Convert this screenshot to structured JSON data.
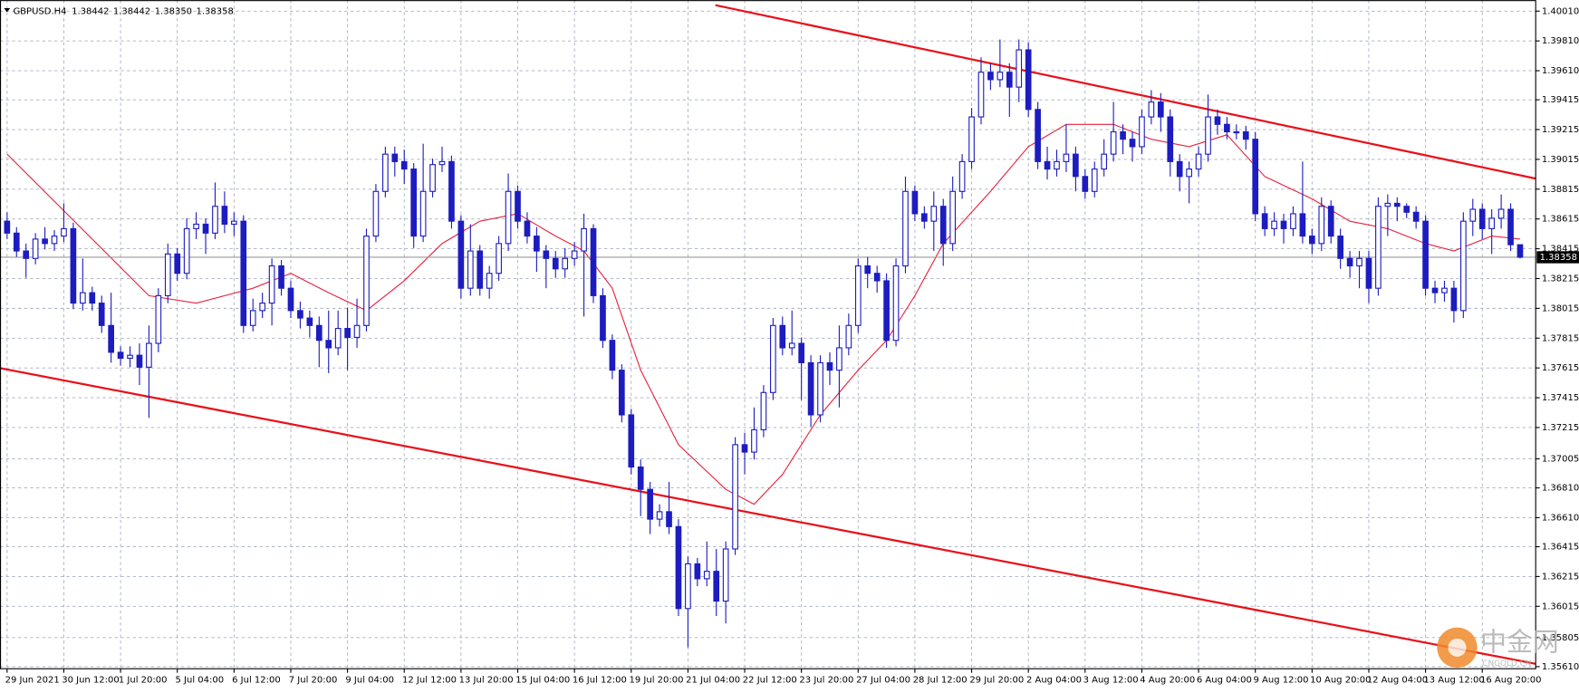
{
  "chart_data": {
    "type": "candlestick",
    "title": "GBPUSD.H4",
    "ohlc_labels": [
      "1.38442",
      "1.38442",
      "1.38350",
      "1.38358"
    ],
    "color": "#1c1cc0",
    "grid": true,
    "xlim": [
      -0.75,
      161.65
    ],
    "ylim": [
      1.35596,
      1.40084
    ],
    "yticks": [
      {
        "value": 1.4001,
        "label": "1.40010"
      },
      {
        "value": 1.3981,
        "label": "1.39810"
      },
      {
        "value": 1.3961,
        "label": "1.39610"
      },
      {
        "value": 1.39415,
        "label": "1.39415"
      },
      {
        "value": 1.39215,
        "label": "1.39215"
      },
      {
        "value": 1.39015,
        "label": "1.39015"
      },
      {
        "value": 1.38815,
        "label": "1.38815"
      },
      {
        "value": 1.38615,
        "label": "1.38615"
      },
      {
        "value": 1.38415,
        "label": "1.38415"
      },
      {
        "value": 1.38215,
        "label": "1.38215"
      },
      {
        "value": 1.38015,
        "label": "1.38015"
      },
      {
        "value": 1.37815,
        "label": "1.37815"
      },
      {
        "value": 1.37615,
        "label": "1.37615"
      },
      {
        "value": 1.37415,
        "label": "1.37415"
      },
      {
        "value": 1.37215,
        "label": "1.37215"
      },
      {
        "value": 1.37005,
        "label": "1.37005"
      },
      {
        "value": 1.3681,
        "label": "1.36810"
      },
      {
        "value": 1.3661,
        "label": "1.36610"
      },
      {
        "value": 1.36415,
        "label": "1.36415"
      },
      {
        "value": 1.36215,
        "label": "1.36215"
      },
      {
        "value": 1.36015,
        "label": "1.36015"
      },
      {
        "value": 1.35805,
        "label": "1.35805"
      },
      {
        "value": 1.3561,
        "label": "1.35610"
      }
    ],
    "xticks": [
      {
        "value": 0,
        "label": "29 Jun 2021"
      },
      {
        "value": 6,
        "label": "30 Jun 12:00"
      },
      {
        "value": 12,
        "label": "1 Jul 20:00"
      },
      {
        "value": 18,
        "label": "5 Jul 04:00"
      },
      {
        "value": 24,
        "label": "6 Jul 12:00"
      },
      {
        "value": 30,
        "label": "7 Jul 20:00"
      },
      {
        "value": 36,
        "label": "9 Jul 04:00"
      },
      {
        "value": 42,
        "label": "12 Jul 12:00"
      },
      {
        "value": 48,
        "label": "13 Jul 20:00"
      },
      {
        "value": 54,
        "label": "15 Jul 04:00"
      },
      {
        "value": 60,
        "label": "16 Jul 12:00"
      },
      {
        "value": 66,
        "label": "19 Jul 20:00"
      },
      {
        "value": 72,
        "label": "21 Jul 04:00"
      },
      {
        "value": 78,
        "label": "22 Jul 12:00"
      },
      {
        "value": 84,
        "label": "23 Jul 20:00"
      },
      {
        "value": 90,
        "label": "27 Jul 04:00"
      },
      {
        "value": 96,
        "label": "28 Jul 12:00"
      },
      {
        "value": 102,
        "label": "29 Jul 20:00"
      },
      {
        "value": 108,
        "label": "2 Aug 04:00"
      },
      {
        "value": 114,
        "label": "3 Aug 12:00"
      },
      {
        "value": 120,
        "label": "4 Aug 20:00"
      },
      {
        "value": 126,
        "label": "6 Aug 04:00"
      },
      {
        "value": 132,
        "label": "9 Aug 12:00"
      },
      {
        "value": 138,
        "label": "10 Aug 20:00"
      },
      {
        "value": 144,
        "label": "12 Aug 04:00"
      },
      {
        "value": 150,
        "label": "13 Aug 12:00"
      },
      {
        "value": 156,
        "label": "16 Aug 20:00"
      }
    ],
    "candles": [
      [
        1.386,
        1.3866,
        1.3848,
        1.3852
      ],
      [
        1.3852,
        1.3856,
        1.3836,
        1.384
      ],
      [
        1.384,
        1.3845,
        1.3822,
        1.3835
      ],
      [
        1.3835,
        1.3852,
        1.3831,
        1.3848
      ],
      [
        1.3848,
        1.3856,
        1.3841,
        1.3845
      ],
      [
        1.3845,
        1.3854,
        1.384,
        1.385
      ],
      [
        1.385,
        1.3872,
        1.3846,
        1.3855
      ],
      [
        1.3855,
        1.3859,
        1.3801,
        1.3805
      ],
      [
        1.3805,
        1.3835,
        1.38,
        1.3812
      ],
      [
        1.3812,
        1.3816,
        1.38,
        1.3805
      ],
      [
        1.3805,
        1.381,
        1.3785,
        1.379
      ],
      [
        1.379,
        1.3812,
        1.3765,
        1.3772
      ],
      [
        1.3772,
        1.3776,
        1.3763,
        1.3768
      ],
      [
        1.3768,
        1.3776,
        1.3762,
        1.377
      ],
      [
        1.377,
        1.3778,
        1.375,
        1.3762
      ],
      [
        1.3762,
        1.379,
        1.3728,
        1.3778
      ],
      [
        1.3778,
        1.3815,
        1.3772,
        1.381
      ],
      [
        1.381,
        1.3845,
        1.3805,
        1.3838
      ],
      [
        1.3838,
        1.3842,
        1.382,
        1.3825
      ],
      [
        1.3825,
        1.3862,
        1.3821,
        1.3855
      ],
      [
        1.3855,
        1.3866,
        1.3848,
        1.3858
      ],
      [
        1.3858,
        1.3862,
        1.3838,
        1.3852
      ],
      [
        1.3852,
        1.3886,
        1.3848,
        1.387
      ],
      [
        1.387,
        1.388,
        1.3852,
        1.3858
      ],
      [
        1.3858,
        1.3866,
        1.385,
        1.386
      ],
      [
        1.386,
        1.3864,
        1.3785,
        1.379
      ],
      [
        1.379,
        1.3808,
        1.3786,
        1.38
      ],
      [
        1.38,
        1.3812,
        1.3795,
        1.3805
      ],
      [
        1.3805,
        1.3835,
        1.379,
        1.383
      ],
      [
        1.383,
        1.3834,
        1.381,
        1.3815
      ],
      [
        1.3815,
        1.382,
        1.3795,
        1.38
      ],
      [
        1.38,
        1.3806,
        1.3788,
        1.3795
      ],
      [
        1.3795,
        1.38,
        1.3782,
        1.379
      ],
      [
        1.379,
        1.3796,
        1.3762,
        1.378
      ],
      [
        1.378,
        1.38,
        1.3758,
        1.3775
      ],
      [
        1.3775,
        1.38,
        1.377,
        1.3788
      ],
      [
        1.3788,
        1.3802,
        1.376,
        1.3782
      ],
      [
        1.3782,
        1.3808,
        1.3775,
        1.379
      ],
      [
        1.379,
        1.3855,
        1.3786,
        1.385
      ],
      [
        1.385,
        1.3885,
        1.3846,
        1.388
      ],
      [
        1.388,
        1.391,
        1.3876,
        1.3905
      ],
      [
        1.3905,
        1.391,
        1.389,
        1.39
      ],
      [
        1.39,
        1.3908,
        1.3885,
        1.3895
      ],
      [
        1.3895,
        1.3899,
        1.3842,
        1.385
      ],
      [
        1.385,
        1.3912,
        1.3846,
        1.388
      ],
      [
        1.388,
        1.3902,
        1.3876,
        1.3898
      ],
      [
        1.3898,
        1.391,
        1.3893,
        1.39
      ],
      [
        1.39,
        1.3904,
        1.3855,
        1.386
      ],
      [
        1.386,
        1.3864,
        1.3808,
        1.3815
      ],
      [
        1.3815,
        1.3858,
        1.381,
        1.384
      ],
      [
        1.384,
        1.3844,
        1.381,
        1.3815
      ],
      [
        1.3815,
        1.383,
        1.3808,
        1.3825
      ],
      [
        1.3825,
        1.385,
        1.382,
        1.3845
      ],
      [
        1.3845,
        1.3892,
        1.384,
        1.388
      ],
      [
        1.388,
        1.3884,
        1.3855,
        1.386
      ],
      [
        1.386,
        1.3866,
        1.3845,
        1.385
      ],
      [
        1.385,
        1.3856,
        1.3826,
        1.384
      ],
      [
        1.384,
        1.3844,
        1.3815,
        1.3835
      ],
      [
        1.3835,
        1.384,
        1.3822,
        1.3828
      ],
      [
        1.3828,
        1.3842,
        1.3822,
        1.3835
      ],
      [
        1.3835,
        1.3846,
        1.383,
        1.384
      ],
      [
        1.384,
        1.3865,
        1.3796,
        1.3855
      ],
      [
        1.3855,
        1.3858,
        1.3805,
        1.381
      ],
      [
        1.381,
        1.3815,
        1.3775,
        1.378
      ],
      [
        1.378,
        1.3784,
        1.3754,
        1.376
      ],
      [
        1.376,
        1.3764,
        1.3725,
        1.373
      ],
      [
        1.373,
        1.3734,
        1.369,
        1.3695
      ],
      [
        1.3695,
        1.37,
        1.3662,
        1.368
      ],
      [
        1.368,
        1.3685,
        1.365,
        1.366
      ],
      [
        1.366,
        1.367,
        1.3655,
        1.3665
      ],
      [
        1.3665,
        1.3685,
        1.365,
        1.3655
      ],
      [
        1.3655,
        1.366,
        1.3595,
        1.36
      ],
      [
        1.36,
        1.3635,
        1.3574,
        1.363
      ],
      [
        1.363,
        1.3634,
        1.3615,
        1.362
      ],
      [
        1.362,
        1.3645,
        1.3615,
        1.3625
      ],
      [
        1.3625,
        1.364,
        1.3595,
        1.3605
      ],
      [
        1.3605,
        1.3645,
        1.359,
        1.364
      ],
      [
        1.364,
        1.3715,
        1.3636,
        1.371
      ],
      [
        1.371,
        1.3718,
        1.369,
        1.3705
      ],
      [
        1.3705,
        1.3735,
        1.37,
        1.372
      ],
      [
        1.372,
        1.375,
        1.3715,
        1.3745
      ],
      [
        1.3745,
        1.3795,
        1.374,
        1.379
      ],
      [
        1.379,
        1.3796,
        1.377,
        1.3775
      ],
      [
        1.3775,
        1.38,
        1.377,
        1.3778
      ],
      [
        1.3778,
        1.3782,
        1.374,
        1.3765
      ],
      [
        1.3765,
        1.377,
        1.3722,
        1.373
      ],
      [
        1.373,
        1.377,
        1.3725,
        1.3765
      ],
      [
        1.3765,
        1.3772,
        1.375,
        1.376
      ],
      [
        1.376,
        1.379,
        1.3735,
        1.3775
      ],
      [
        1.3775,
        1.3798,
        1.377,
        1.379
      ],
      [
        1.379,
        1.3835,
        1.3785,
        1.383
      ],
      [
        1.383,
        1.3836,
        1.3815,
        1.3825
      ],
      [
        1.3825,
        1.383,
        1.3812,
        1.382
      ],
      [
        1.382,
        1.3825,
        1.3775,
        1.378
      ],
      [
        1.378,
        1.3835,
        1.3776,
        1.383
      ],
      [
        1.383,
        1.389,
        1.3825,
        1.388
      ],
      [
        1.388,
        1.3884,
        1.386,
        1.3865
      ],
      [
        1.3865,
        1.387,
        1.3855,
        1.386
      ],
      [
        1.386,
        1.388,
        1.384,
        1.387
      ],
      [
        1.387,
        1.3875,
        1.383,
        1.3845
      ],
      [
        1.3845,
        1.389,
        1.384,
        1.388
      ],
      [
        1.388,
        1.3905,
        1.3875,
        1.39
      ],
      [
        1.39,
        1.3936,
        1.3895,
        1.393
      ],
      [
        1.393,
        1.397,
        1.3925,
        1.396
      ],
      [
        1.396,
        1.3966,
        1.3948,
        1.3955
      ],
      [
        1.3955,
        1.3982,
        1.395,
        1.396
      ],
      [
        1.396,
        1.3966,
        1.393,
        1.395
      ],
      [
        1.395,
        1.3982,
        1.394,
        1.3975
      ],
      [
        1.3975,
        1.398,
        1.393,
        1.3935
      ],
      [
        1.3935,
        1.394,
        1.3895,
        1.39
      ],
      [
        1.39,
        1.391,
        1.3888,
        1.3895
      ],
      [
        1.3895,
        1.3908,
        1.389,
        1.39
      ],
      [
        1.39,
        1.3925,
        1.3893,
        1.3905
      ],
      [
        1.3905,
        1.391,
        1.388,
        1.389
      ],
      [
        1.389,
        1.3895,
        1.3875,
        1.388
      ],
      [
        1.388,
        1.39,
        1.3876,
        1.3895
      ],
      [
        1.3895,
        1.3915,
        1.389,
        1.3905
      ],
      [
        1.3905,
        1.394,
        1.39,
        1.392
      ],
      [
        1.392,
        1.3925,
        1.3905,
        1.3915
      ],
      [
        1.3915,
        1.392,
        1.39,
        1.391
      ],
      [
        1.391,
        1.3935,
        1.3905,
        1.393
      ],
      [
        1.393,
        1.3948,
        1.3925,
        1.394
      ],
      [
        1.394,
        1.3946,
        1.392,
        1.393
      ],
      [
        1.393,
        1.3935,
        1.389,
        1.39
      ],
      [
        1.39,
        1.3905,
        1.388,
        1.389
      ],
      [
        1.389,
        1.39,
        1.3872,
        1.3895
      ],
      [
        1.3895,
        1.391,
        1.389,
        1.3905
      ],
      [
        1.3905,
        1.3945,
        1.39,
        1.393
      ],
      [
        1.393,
        1.3935,
        1.3918,
        1.3925
      ],
      [
        1.3925,
        1.393,
        1.3915,
        1.392
      ],
      [
        1.392,
        1.3925,
        1.3915,
        1.392
      ],
      [
        1.392,
        1.3924,
        1.3908,
        1.3915
      ],
      [
        1.3915,
        1.392,
        1.386,
        1.3865
      ],
      [
        1.3865,
        1.387,
        1.385,
        1.3855
      ],
      [
        1.3855,
        1.3866,
        1.385,
        1.386
      ],
      [
        1.386,
        1.3865,
        1.3845,
        1.3855
      ],
      [
        1.3855,
        1.387,
        1.385,
        1.3865
      ],
      [
        1.3865,
        1.39,
        1.3845,
        1.385
      ],
      [
        1.385,
        1.3855,
        1.3838,
        1.3845
      ],
      [
        1.3845,
        1.3876,
        1.384,
        1.387
      ],
      [
        1.387,
        1.3874,
        1.3845,
        1.385
      ],
      [
        1.385,
        1.3855,
        1.3828,
        1.3835
      ],
      [
        1.3835,
        1.384,
        1.3822,
        1.383
      ],
      [
        1.383,
        1.384,
        1.3815,
        1.3835
      ],
      [
        1.3835,
        1.384,
        1.3805,
        1.3815
      ],
      [
        1.3815,
        1.3876,
        1.381,
        1.387
      ],
      [
        1.387,
        1.3878,
        1.385,
        1.3872
      ],
      [
        1.3872,
        1.3876,
        1.386,
        1.387
      ],
      [
        1.387,
        1.3872,
        1.3862,
        1.3866
      ],
      [
        1.3866,
        1.387,
        1.3855,
        1.386
      ],
      [
        1.386,
        1.3864,
        1.381,
        1.3815
      ],
      [
        1.3815,
        1.382,
        1.3805,
        1.3812
      ],
      [
        1.3812,
        1.382,
        1.3806,
        1.3815
      ],
      [
        1.3815,
        1.382,
        1.3792,
        1.38
      ],
      [
        1.38,
        1.3866,
        1.3795,
        1.386
      ],
      [
        1.386,
        1.3875,
        1.385,
        1.3868
      ],
      [
        1.3868,
        1.3872,
        1.3848,
        1.3855
      ],
      [
        1.3855,
        1.3868,
        1.3838,
        1.3862
      ],
      [
        1.3862,
        1.3878,
        1.3855,
        1.3868
      ],
      [
        1.3868,
        1.3872,
        1.384,
        1.38442
      ],
      [
        1.38442,
        1.38442,
        1.3835,
        1.38358
      ]
    ],
    "moving_average": {
      "color": "#e8213c",
      "x": [
        0,
        15,
        20,
        26,
        30,
        34,
        38,
        42,
        46,
        50,
        54,
        58,
        61,
        64,
        67,
        71,
        76,
        79,
        82,
        86,
        90,
        93,
        96,
        99,
        104,
        108,
        112,
        117,
        121,
        125,
        129,
        133,
        138,
        142,
        146,
        150,
        153,
        157,
        160
      ],
      "values": [
        1.3905,
        1.381,
        1.3805,
        1.3815,
        1.3825,
        1.3812,
        1.38,
        1.382,
        1.3845,
        1.386,
        1.3865,
        1.385,
        1.384,
        1.3815,
        1.376,
        1.371,
        1.368,
        1.367,
        1.369,
        1.373,
        1.376,
        1.378,
        1.381,
        1.3845,
        1.388,
        1.391,
        1.3925,
        1.3925,
        1.3915,
        1.391,
        1.3918,
        1.389,
        1.3875,
        1.386,
        1.3855,
        1.3845,
        1.384,
        1.385,
        1.3848
      ]
    },
    "trend_lines": [
      {
        "color": "#e8101a",
        "x": [
          74.9,
          161.65
        ],
        "values": [
          1.4005,
          1.38886
        ]
      },
      {
        "color": "#e8101a",
        "x": [
          -0.75,
          161.65
        ],
        "values": [
          1.37614,
          1.35629
        ]
      }
    ]
  },
  "watermark": {
    "name": "中金网",
    "site": "CNGOLD.CN"
  }
}
